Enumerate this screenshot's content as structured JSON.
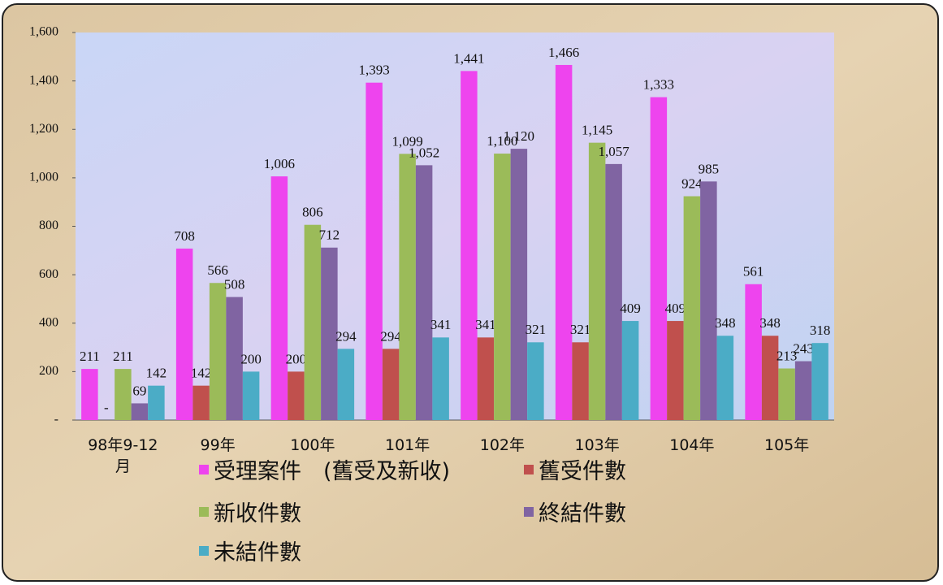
{
  "chart_data": {
    "type": "bar",
    "categories": [
      "98年9-12月",
      "99年",
      "100年",
      "101年",
      "102年",
      "103年",
      "104年",
      "105年"
    ],
    "series": [
      {
        "name": "受理案件　(舊受及新收)",
        "color": "#ee44ee",
        "values": [
          211,
          708,
          1006,
          1393,
          1441,
          1466,
          1333,
          561
        ],
        "value_labels": [
          "211",
          "708",
          "1,006",
          "1,393",
          "1,441",
          "1,466",
          "1,333",
          "561"
        ]
      },
      {
        "name": "舊受件數",
        "color": "#c0504d",
        "values": [
          0,
          142,
          200,
          294,
          341,
          321,
          409,
          348
        ],
        "value_labels": [
          "-",
          "142",
          "200",
          "294",
          "341",
          "321",
          "409",
          "348"
        ]
      },
      {
        "name": "新收件數",
        "color": "#9bbb59",
        "values": [
          211,
          566,
          806,
          1099,
          1100,
          1145,
          924,
          213
        ],
        "value_labels": [
          "211",
          "566",
          "806",
          "1,099",
          "1,100",
          "1,145",
          "924",
          "213"
        ]
      },
      {
        "name": "終結件數",
        "color": "#8064a2",
        "values": [
          69,
          508,
          712,
          1052,
          1120,
          1057,
          985,
          243
        ],
        "value_labels": [
          "69",
          "508",
          "712",
          "1,052",
          "1,120",
          "1,057",
          "985",
          "243"
        ]
      },
      {
        "name": "未結件數",
        "color": "#4bacc6",
        "values": [
          142,
          200,
          294,
          341,
          321,
          409,
          348,
          318
        ],
        "value_labels": [
          "142",
          "200",
          "294",
          "341",
          "321",
          "409",
          "348",
          "318"
        ]
      }
    ],
    "ylim": [
      0,
      1600
    ],
    "yticks": [
      {
        "value": 0,
        "label": "-"
      },
      200,
      400,
      600,
      800,
      {
        "value": 1000,
        "label": "1,000"
      },
      {
        "value": 1200,
        "label": "1,200"
      },
      {
        "value": 1400,
        "label": "1,400"
      },
      {
        "value": 1600,
        "label": "1,600"
      }
    ],
    "grid": false
  }
}
